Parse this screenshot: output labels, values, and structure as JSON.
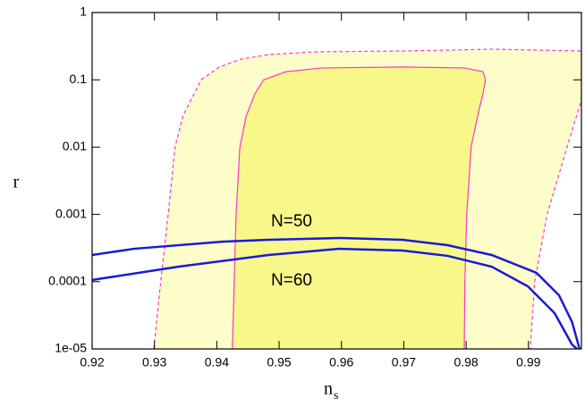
{
  "chart_data": {
    "type": "line",
    "ylabel": "r",
    "xlabel": "n",
    "xlabel_subscript": "s",
    "annotations": [
      "N=50",
      "N=60"
    ],
    "xlim": [
      0.92,
      0.9985
    ],
    "xticks": [
      0.92,
      0.93,
      0.94,
      0.95,
      0.96,
      0.97,
      0.98,
      0.99
    ],
    "ylim": [
      1e-05,
      1
    ],
    "ylog": true,
    "yticks": [
      1,
      0.1,
      0.01,
      0.001,
      0.0001,
      {
        "value": 1e-05,
        "label": "1e-05"
      }
    ],
    "series": [
      {
        "color": "#ff33cc",
        "fill": "#fdfdc9",
        "dashed": true,
        "x": [
          0.9299,
          0.931,
          0.9322,
          0.9333,
          0.9346,
          0.9375,
          0.9404,
          0.944,
          0.9483,
          0.9554,
          0.9698,
          0.9841,
          0.9913,
          0.9985,
          0.9985,
          0.9962,
          0.993,
          0.991,
          0.9903
        ],
        "values": [
          1e-05,
          0.0001,
          0.001,
          0.01,
          0.0296,
          0.1,
          0.155,
          0.204,
          0.237,
          0.26,
          0.268,
          0.285,
          0.277,
          0.268,
          0.05,
          0.01,
          0.001,
          0.0001,
          1e-05
        ]
      },
      {
        "color": "#ff33cc",
        "fill": "#f8f88a",
        "dashed": false,
        "x": [
          0.9425,
          0.9428,
          0.9431,
          0.9437,
          0.9447,
          0.9461,
          0.9475,
          0.9511,
          0.9569,
          0.9698,
          0.9798,
          0.9827,
          0.9831,
          0.9827,
          0.982,
          0.9808,
          0.9801,
          0.9798,
          0.9797
        ],
        "values": [
          1e-05,
          0.0001,
          0.001,
          0.01,
          0.0287,
          0.0616,
          0.1,
          0.132,
          0.15,
          0.155,
          0.15,
          0.132,
          0.1,
          0.0616,
          0.0334,
          0.01,
          0.001,
          0.0001,
          1e-05
        ]
      },
      {
        "color": "#1a1ad6",
        "width": 2.5,
        "x": [
          0.92,
          0.9267,
          0.9411,
          0.9483,
          0.9597,
          0.9698,
          0.977,
          0.9841,
          0.9913,
          0.9949,
          0.997,
          0.9982
        ],
        "values": [
          0.000249,
          0.000308,
          0.000394,
          0.000419,
          0.000446,
          0.000419,
          0.000349,
          0.000249,
          0.000135,
          6.28e-05,
          2.51e-05,
          1e-05
        ]
      },
      {
        "color": "#1a1ad6",
        "width": 2.5,
        "x": [
          0.92,
          0.9339,
          0.9483,
          0.9597,
          0.9698,
          0.977,
          0.9841,
          0.9899,
          0.9942,
          0.997,
          0.9978
        ],
        "values": [
          0.000106,
          0.000167,
          0.000249,
          0.000308,
          0.00029,
          0.000242,
          0.000167,
          8.53e-05,
          3.4e-05,
          1.16e-05,
          1e-05
        ]
      }
    ]
  }
}
